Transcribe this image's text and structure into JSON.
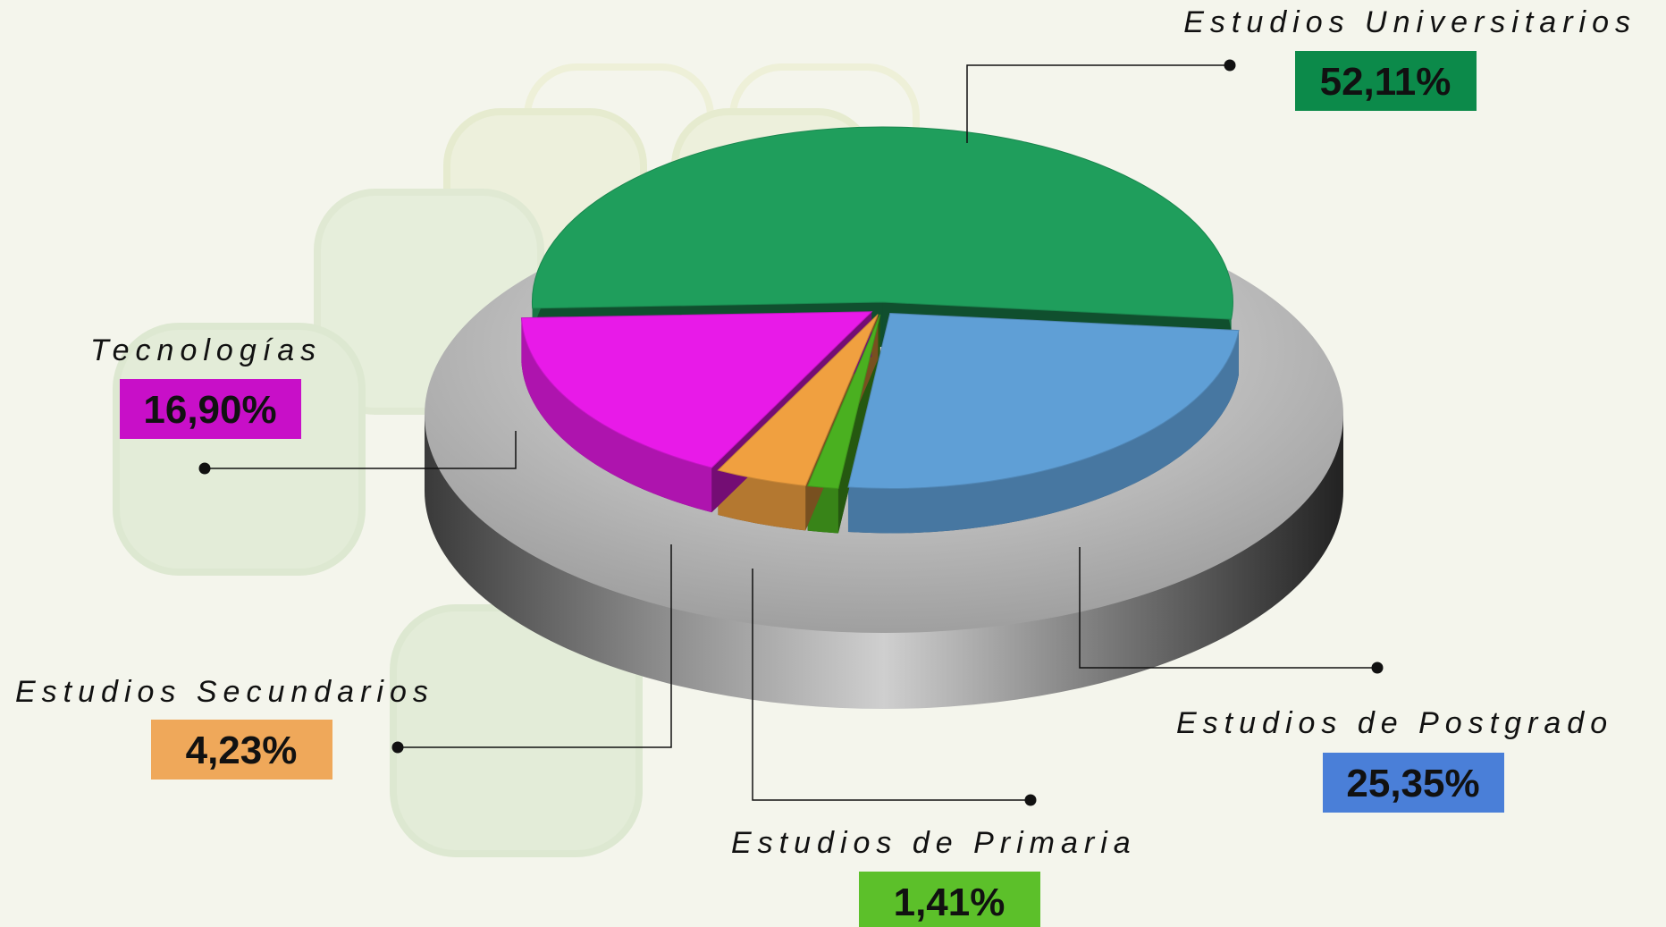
{
  "chart_data": {
    "type": "pie",
    "categories": [
      "Estudios Universitarios",
      "Estudios de Postgrado",
      "Estudios de Primaria",
      "Estudios Secundarios",
      "Tecnologías"
    ],
    "values": [
      52.11,
      25.35,
      1.41,
      4.23,
      16.9
    ],
    "value_labels": [
      "52,11%",
      "25,35%",
      "1,41%",
      "4,23%",
      "16,90%"
    ],
    "colors": [
      "#1f9e5c",
      "#5f9fd6",
      "#4ab020",
      "#f0a040",
      "#e81ae8"
    ],
    "label_colors": [
      "#0c8a4a",
      "#4a7fd8",
      "#5cc02a",
      "#efa85a",
      "#c80fc8"
    ]
  }
}
